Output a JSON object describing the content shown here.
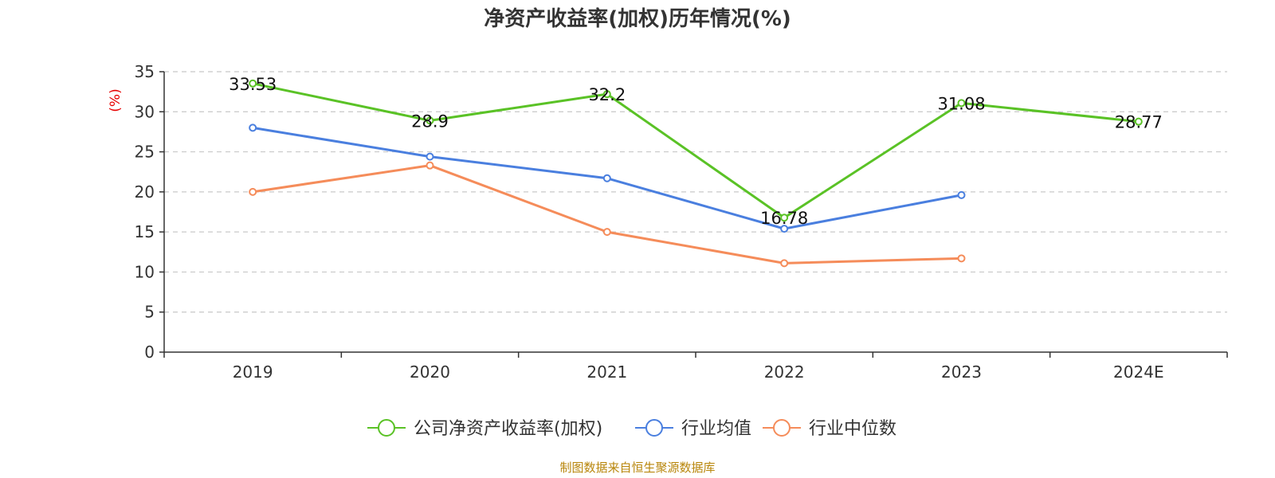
{
  "chart_data": {
    "type": "line",
    "title": "净资产收益率(加权)历年情况(%)",
    "ylabel": "(%)",
    "xlabel": "",
    "ylim": [
      0,
      35
    ],
    "yticks": [
      0,
      5,
      10,
      15,
      20,
      25,
      30,
      35
    ],
    "grid": true,
    "legend_position": "bottom",
    "categories": [
      "2019",
      "2020",
      "2021",
      "2022",
      "2023",
      "2024E"
    ],
    "series": [
      {
        "name": "公司净资产收益率(加权)",
        "color": "#5ac226",
        "values": [
          33.53,
          28.9,
          32.2,
          16.78,
          31.08,
          28.77
        ],
        "labels": [
          "33.53",
          "28.9",
          "32.2",
          "16.78",
          "31.08",
          "28.77"
        ]
      },
      {
        "name": "行业均值",
        "color": "#4a7fdf",
        "values": [
          28.0,
          24.4,
          21.7,
          15.4,
          19.6,
          null
        ]
      },
      {
        "name": "行业中位数",
        "color": "#f58c5a",
        "values": [
          20.0,
          23.3,
          15.0,
          11.1,
          11.7,
          null
        ]
      }
    ]
  },
  "ylabel_color": "#e60000",
  "source": "制图数据来自恒生聚源数据库",
  "source_color": "#b8860b"
}
